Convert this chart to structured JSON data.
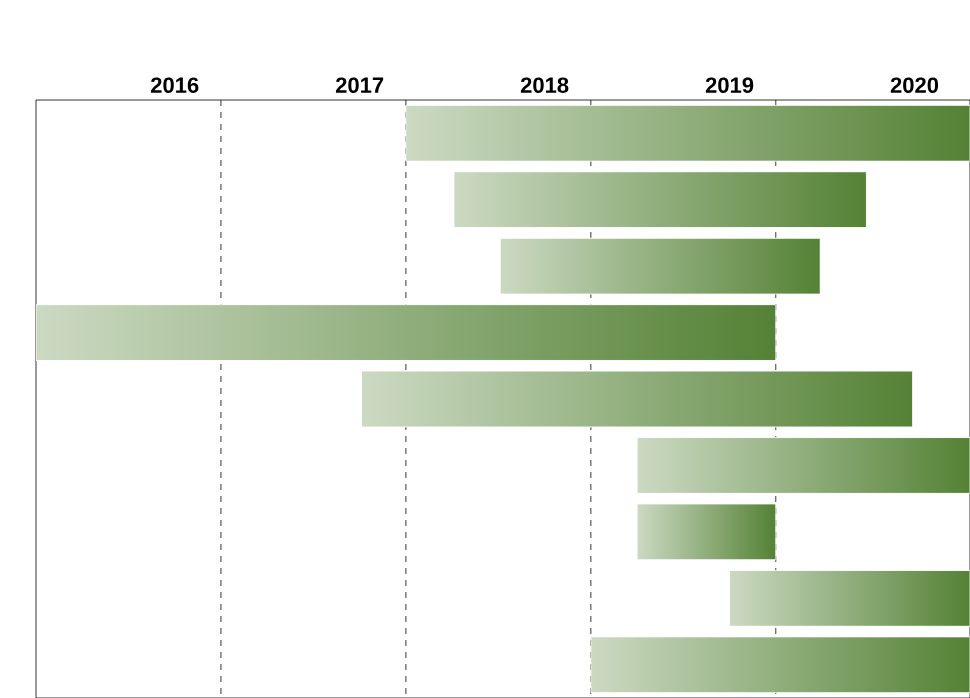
{
  "chart_data": {
    "type": "bar",
    "orientation": "horizontal",
    "categories": [
      null,
      null,
      null,
      null,
      null,
      null,
      null,
      null,
      null
    ],
    "base": [
      2017.25,
      2017.51,
      2017.76,
      2015.25,
      2017.01,
      2018.5,
      2018.5,
      2019.0,
      2018.25
    ],
    "values": [
      3.05,
      2.23,
      1.73,
      4.0,
      2.98,
      1.8,
      0.75,
      1.3,
      2.05
    ],
    "color": "#548235",
    "xlim": [
      2015.25,
      2020.3
    ],
    "xticks": [
      2016,
      2017,
      2018,
      2019,
      2020,
      {
        "value": 2016.25,
        "label": null
      },
      {
        "value": 2017.25,
        "label": null
      },
      {
        "value": 2018.25,
        "label": null
      },
      {
        "value": 2019.25,
        "label": null
      }
    ],
    "grid": true,
    "tick_labels": "x"
  }
}
